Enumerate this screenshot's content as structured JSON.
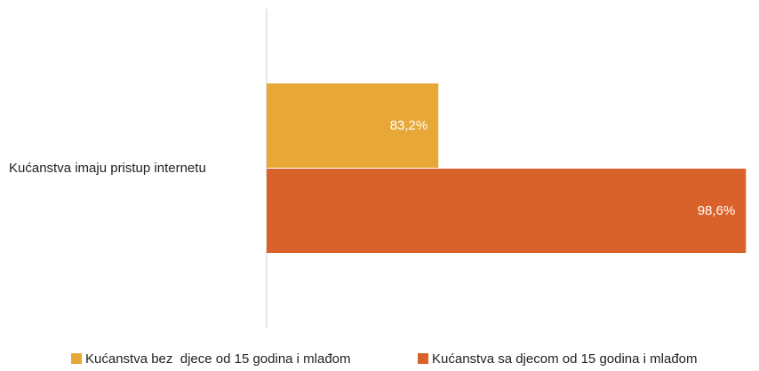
{
  "chart_data": {
    "type": "bar",
    "orientation": "horizontal",
    "categories": [
      "Kućanstva imaju pristup internetu"
    ],
    "series": [
      {
        "name": "Kućanstva bez  djece od 15 godina i mlađom",
        "color": "#e8a838",
        "values": [
          83.2
        ],
        "value_labels": [
          "83,2%"
        ]
      },
      {
        "name": "Kućanstva sa djecom od 15 godina i mlađom",
        "color": "#d9622b",
        "values": [
          98.6
        ],
        "value_labels": [
          "98,6%"
        ]
      }
    ],
    "xlim": [
      74.6,
      98.9
    ],
    "legend": "bottom"
  }
}
